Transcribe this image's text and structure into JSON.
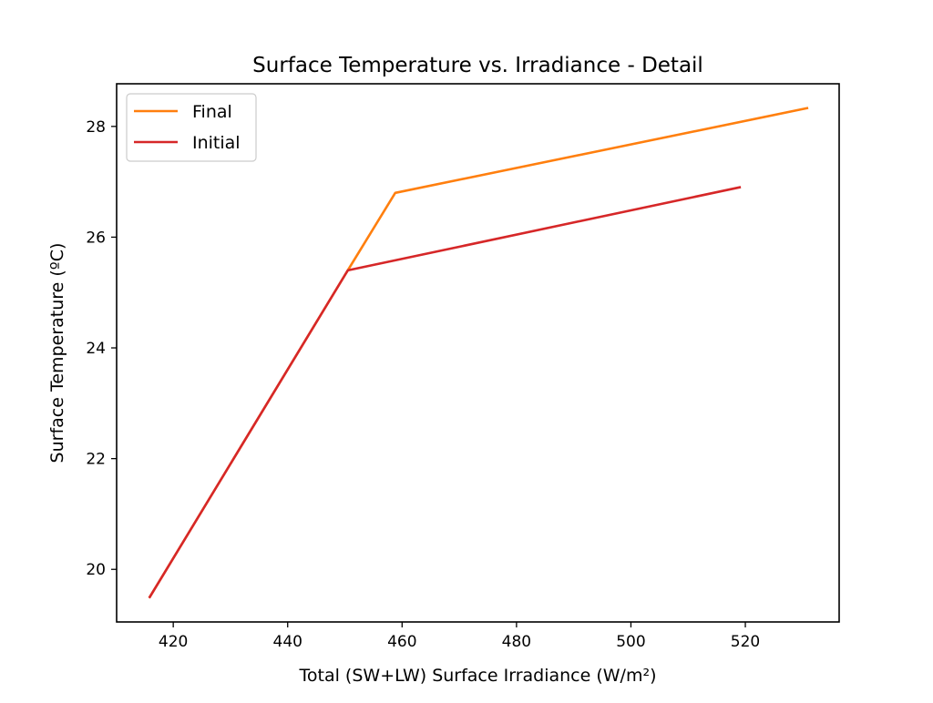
{
  "chart_data": {
    "type": "line",
    "title": "Surface Temperature vs. Irradiance - Detail",
    "xlabel": "Total (SW+LW) Surface Irradiance (W/m²)",
    "ylabel": "Surface Temperature (ºC)",
    "xlim": [
      410.1,
      536.4
    ],
    "ylim": [
      19.05,
      28.77
    ],
    "xticks": [
      420,
      440,
      460,
      480,
      500,
      520
    ],
    "yticks": [
      20,
      22,
      24,
      26,
      28
    ],
    "xtick_labels": [
      "420",
      "440",
      "460",
      "480",
      "500",
      "520"
    ],
    "ytick_labels": [
      "20",
      "22",
      "24",
      "26",
      "28"
    ],
    "grid": false,
    "legend_position": "top-left",
    "series": [
      {
        "name": "Final",
        "color": "#ff7f0e",
        "x": [
          415.9,
          450.5,
          458.8,
          530.8
        ],
        "y": [
          19.5,
          25.4,
          26.8,
          28.33
        ]
      },
      {
        "name": "Initial",
        "color": "#d62728",
        "x": [
          415.9,
          450.5,
          519.0
        ],
        "y": [
          19.5,
          25.4,
          26.9
        ]
      }
    ]
  }
}
